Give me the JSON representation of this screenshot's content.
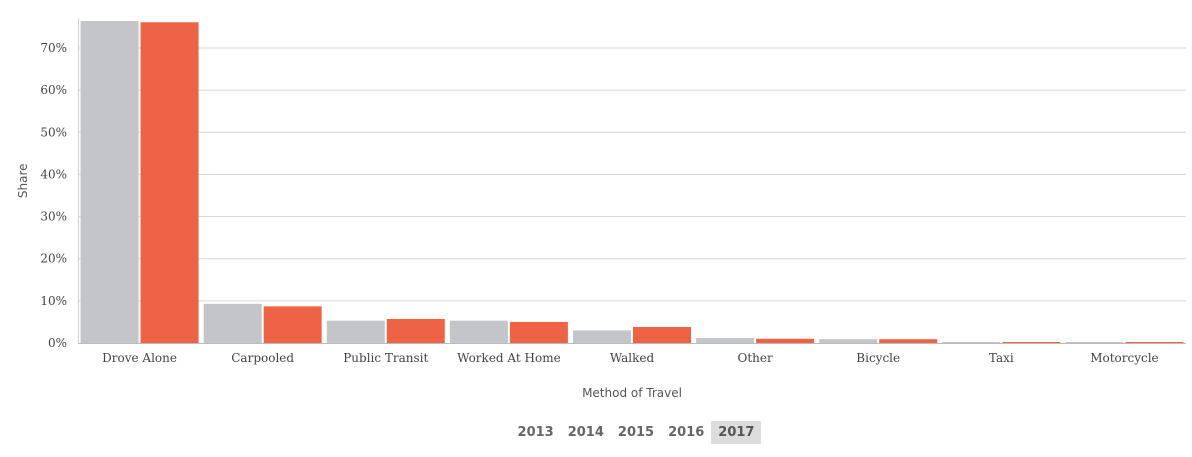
{
  "chart_data": {
    "type": "bar",
    "xlabel": "Method of Travel",
    "ylabel": "Share",
    "ylim": [
      0,
      0.77
    ],
    "yticks": [
      0,
      0.1,
      0.2,
      0.3,
      0.4,
      0.5,
      0.6,
      0.7
    ],
    "ytick_labels": [
      "0%",
      "10%",
      "20%",
      "30%",
      "40%",
      "50%",
      "60%",
      "70%"
    ],
    "categories": [
      "Drove Alone",
      "Carpooled",
      "Public Transit",
      "Worked At Home",
      "Walked",
      "Other",
      "Bicycle",
      "Taxi",
      "Motorcycle"
    ],
    "series": [
      {
        "color": "#c4c5c9",
        "values": [
          0.764,
          0.093,
          0.053,
          0.053,
          0.03,
          0.012,
          0.009,
          0.001,
          0.001
        ]
      },
      {
        "color": "#ee6346",
        "values": [
          0.761,
          0.087,
          0.057,
          0.05,
          0.038,
          0.01,
          0.009,
          0.001,
          0.0005
        ]
      }
    ],
    "grid": true
  },
  "years": {
    "items": [
      "2013",
      "2014",
      "2015",
      "2016",
      "2017"
    ],
    "selected": "2017"
  }
}
